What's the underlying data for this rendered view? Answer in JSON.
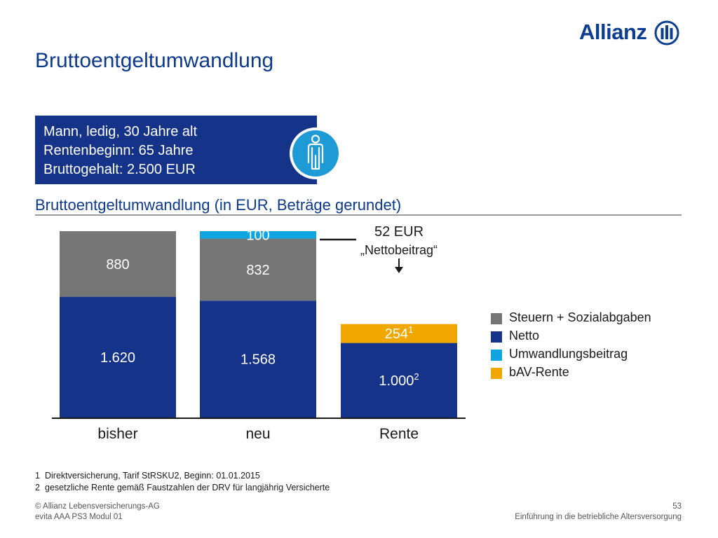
{
  "brand": {
    "name": "Allianz",
    "color": "#0b3d91",
    "logo_icon": "allianz-eagle-bars"
  },
  "page": {
    "title": "Bruttoentgeltumwandlung"
  },
  "info_box": {
    "lines": [
      "Mann, ledig, 30 Jahre alt",
      "Rentenbeginn:  65 Jahre",
      "Bruttogehalt:  2.500 EUR"
    ],
    "icon": "person-icon",
    "color": "#16338a",
    "icon_color": "#1e9ad6"
  },
  "section": {
    "title": "Bruttoentgeltumwandlung (in EUR, Beträge gerundet)"
  },
  "chart_data": {
    "type": "bar",
    "stacked": true,
    "categories": [
      "bisher",
      "neu",
      "Rente"
    ],
    "ylim": [
      0,
      2500
    ],
    "grid": false,
    "legend_position": "right",
    "series": [
      {
        "name": "Netto",
        "color": "#16338a",
        "values": [
          1620,
          1568,
          1000
        ],
        "labels": [
          "1.620",
          "1.568",
          "1.000"
        ],
        "superscripts": [
          "",
          "",
          "2"
        ]
      },
      {
        "name": "Steuern + Sozialabgaben",
        "color": "#767676",
        "values": [
          880,
          832,
          null
        ],
        "labels": [
          "880",
          "832",
          ""
        ],
        "superscripts": [
          "",
          "",
          ""
        ]
      },
      {
        "name": "Umwandlungsbeitrag",
        "color": "#0ea5e0",
        "values": [
          null,
          100,
          null
        ],
        "labels": [
          "",
          "100",
          ""
        ],
        "superscripts": [
          "",
          "",
          ""
        ]
      },
      {
        "name": "bAV-Rente",
        "color": "#f0a800",
        "values": [
          null,
          null,
          254
        ],
        "labels": [
          "",
          "",
          "254"
        ],
        "superscripts": [
          "",
          "",
          "1"
        ]
      }
    ],
    "legend_order": [
      "Steuern + Sozialabgaben",
      "Netto",
      "Umwandlungsbeitrag",
      "bAV-Rente"
    ],
    "annotation": {
      "line1": "52 EUR",
      "line2": "„Nettobeitrag“"
    }
  },
  "footnotes": [
    {
      "num": "1",
      "text": "Direktversicherung, Tarif StRSKU2, Beginn: 01.01.2015"
    },
    {
      "num": "2",
      "text": "gesetzliche Rente gemäß Faustzahlen der DRV für langjährig Versicherte"
    }
  ],
  "footer": {
    "left_line1": "© Allianz Lebensversicherungs-AG",
    "left_line2": "evita AAA PS3 Modul 01",
    "page_number": "53",
    "right_line2": "Einführung in die betriebliche Altersversorgung"
  }
}
